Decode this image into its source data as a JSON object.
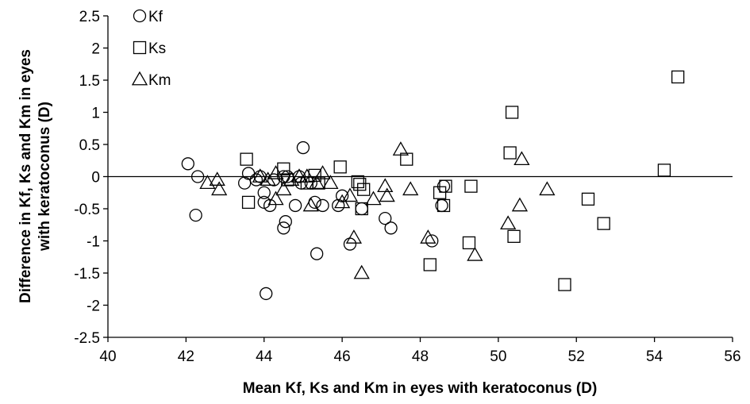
{
  "chart_data": {
    "type": "scatter",
    "xlabel": "Mean Kf, Ks and Km in eyes with keratoconus (D)",
    "ylabel": [
      "Difference in Kf, Ks and Km in eyes",
      "with keratoconus (D)"
    ],
    "xlim": [
      40,
      56
    ],
    "ylim": [
      -2.5,
      2.5
    ],
    "xticks": [
      "40",
      "42",
      "44",
      "46",
      "48",
      "50",
      "52",
      "54",
      "56"
    ],
    "yticks": [
      "2.5",
      "2",
      "1.5",
      "1",
      "0.5",
      "0",
      "-0.5",
      "-1",
      "-1.5",
      "-2",
      "-2.5"
    ],
    "grid": false,
    "zero_line": true,
    "legend_position": "top-left",
    "series": [
      {
        "name": "Kf",
        "marker": "circle",
        "points": [
          [
            42.05,
            0.2
          ],
          [
            42.25,
            -0.6
          ],
          [
            42.3,
            0.0
          ],
          [
            43.5,
            -0.1
          ],
          [
            43.6,
            0.05
          ],
          [
            43.8,
            -0.05
          ],
          [
            43.9,
            0.0
          ],
          [
            44.0,
            -0.25
          ],
          [
            44.0,
            -0.4
          ],
          [
            44.05,
            -1.82
          ],
          [
            44.15,
            -0.45
          ],
          [
            44.25,
            -0.05
          ],
          [
            44.5,
            0.0
          ],
          [
            44.5,
            -0.8
          ],
          [
            44.55,
            -0.7
          ],
          [
            44.6,
            0.0
          ],
          [
            44.8,
            -0.45
          ],
          [
            44.9,
            0.0
          ],
          [
            44.95,
            -0.1
          ],
          [
            45.0,
            0.45
          ],
          [
            45.2,
            -0.1
          ],
          [
            45.3,
            -0.4
          ],
          [
            45.35,
            -1.2
          ],
          [
            45.5,
            -0.45
          ],
          [
            45.9,
            -0.45
          ],
          [
            46.0,
            -0.3
          ],
          [
            46.2,
            -1.05
          ],
          [
            46.5,
            -0.5
          ],
          [
            47.1,
            -0.65
          ],
          [
            47.25,
            -0.8
          ],
          [
            48.3,
            -1.0
          ],
          [
            48.55,
            -0.45
          ],
          [
            48.6,
            -0.15
          ]
        ]
      },
      {
        "name": "Ks",
        "marker": "square",
        "points": [
          [
            43.55,
            0.27
          ],
          [
            43.6,
            -0.4
          ],
          [
            44.5,
            0.12
          ],
          [
            44.6,
            -0.05
          ],
          [
            45.1,
            -0.1
          ],
          [
            45.3,
            0.02
          ],
          [
            45.4,
            -0.1
          ],
          [
            45.95,
            0.15
          ],
          [
            46.4,
            -0.08
          ],
          [
            46.45,
            -0.12
          ],
          [
            46.5,
            -0.5
          ],
          [
            46.55,
            -0.2
          ],
          [
            47.65,
            0.27
          ],
          [
            48.25,
            -1.37
          ],
          [
            48.5,
            -0.25
          ],
          [
            48.6,
            -0.45
          ],
          [
            48.65,
            -0.15
          ],
          [
            49.25,
            -1.03
          ],
          [
            49.3,
            -0.15
          ],
          [
            50.3,
            0.37
          ],
          [
            50.35,
            1.0
          ],
          [
            50.4,
            -0.93
          ],
          [
            51.7,
            -1.68
          ],
          [
            52.3,
            -0.35
          ],
          [
            52.7,
            -0.73
          ],
          [
            54.25,
            0.1
          ],
          [
            54.6,
            1.55
          ]
        ]
      },
      {
        "name": "Km",
        "marker": "triangle",
        "points": [
          [
            42.55,
            -0.1
          ],
          [
            42.8,
            -0.05
          ],
          [
            42.85,
            -0.2
          ],
          [
            43.9,
            0.0
          ],
          [
            44.1,
            -0.05
          ],
          [
            44.3,
            0.05
          ],
          [
            44.3,
            -0.35
          ],
          [
            44.5,
            -0.2
          ],
          [
            44.7,
            -0.05
          ],
          [
            44.9,
            0.0
          ],
          [
            45.1,
            0.0
          ],
          [
            45.2,
            -0.45
          ],
          [
            45.35,
            -0.1
          ],
          [
            45.5,
            0.05
          ],
          [
            45.7,
            -0.1
          ],
          [
            46.0,
            -0.4
          ],
          [
            46.2,
            -0.3
          ],
          [
            46.3,
            -0.95
          ],
          [
            46.5,
            -1.5
          ],
          [
            46.8,
            -0.35
          ],
          [
            47.1,
            -0.15
          ],
          [
            47.15,
            -0.3
          ],
          [
            47.5,
            0.42
          ],
          [
            47.75,
            -0.2
          ],
          [
            48.2,
            -0.95
          ],
          [
            50.25,
            -0.73
          ],
          [
            50.55,
            -0.45
          ],
          [
            50.6,
            0.27
          ],
          [
            49.4,
            -1.22
          ],
          [
            51.25,
            -0.2
          ]
        ]
      }
    ]
  }
}
